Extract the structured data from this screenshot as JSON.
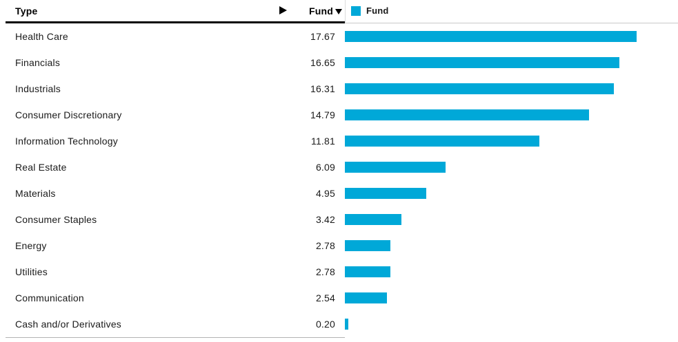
{
  "table": {
    "type_header": "Type",
    "fund_header": "Fund",
    "sort_state": "descending"
  },
  "chart": {
    "legend_label": "Fund"
  },
  "colors": {
    "bar": "#00a8d8",
    "header_rule": "#000000",
    "chart_rule": "#c9c9c9",
    "footer_rule": "#b3b3b3",
    "text": "#1a1a1a"
  },
  "chart_data": {
    "type": "bar",
    "orientation": "horizontal",
    "title": "",
    "xlabel": "",
    "ylabel": "Type",
    "series_name": "Fund",
    "legend_position": "top",
    "grid": false,
    "xlim": [
      0,
      20.2
    ],
    "bar_color": "#00a8d8",
    "categories": [
      "Health Care",
      "Financials",
      "Industrials",
      "Consumer Discretionary",
      "Information Technology",
      "Real Estate",
      "Materials",
      "Consumer Staples",
      "Energy",
      "Utilities",
      "Communication",
      "Cash and/or Derivatives"
    ],
    "values": [
      17.67,
      16.65,
      16.31,
      14.79,
      11.81,
      6.09,
      4.95,
      3.42,
      2.78,
      2.78,
      2.54,
      0.2
    ]
  }
}
